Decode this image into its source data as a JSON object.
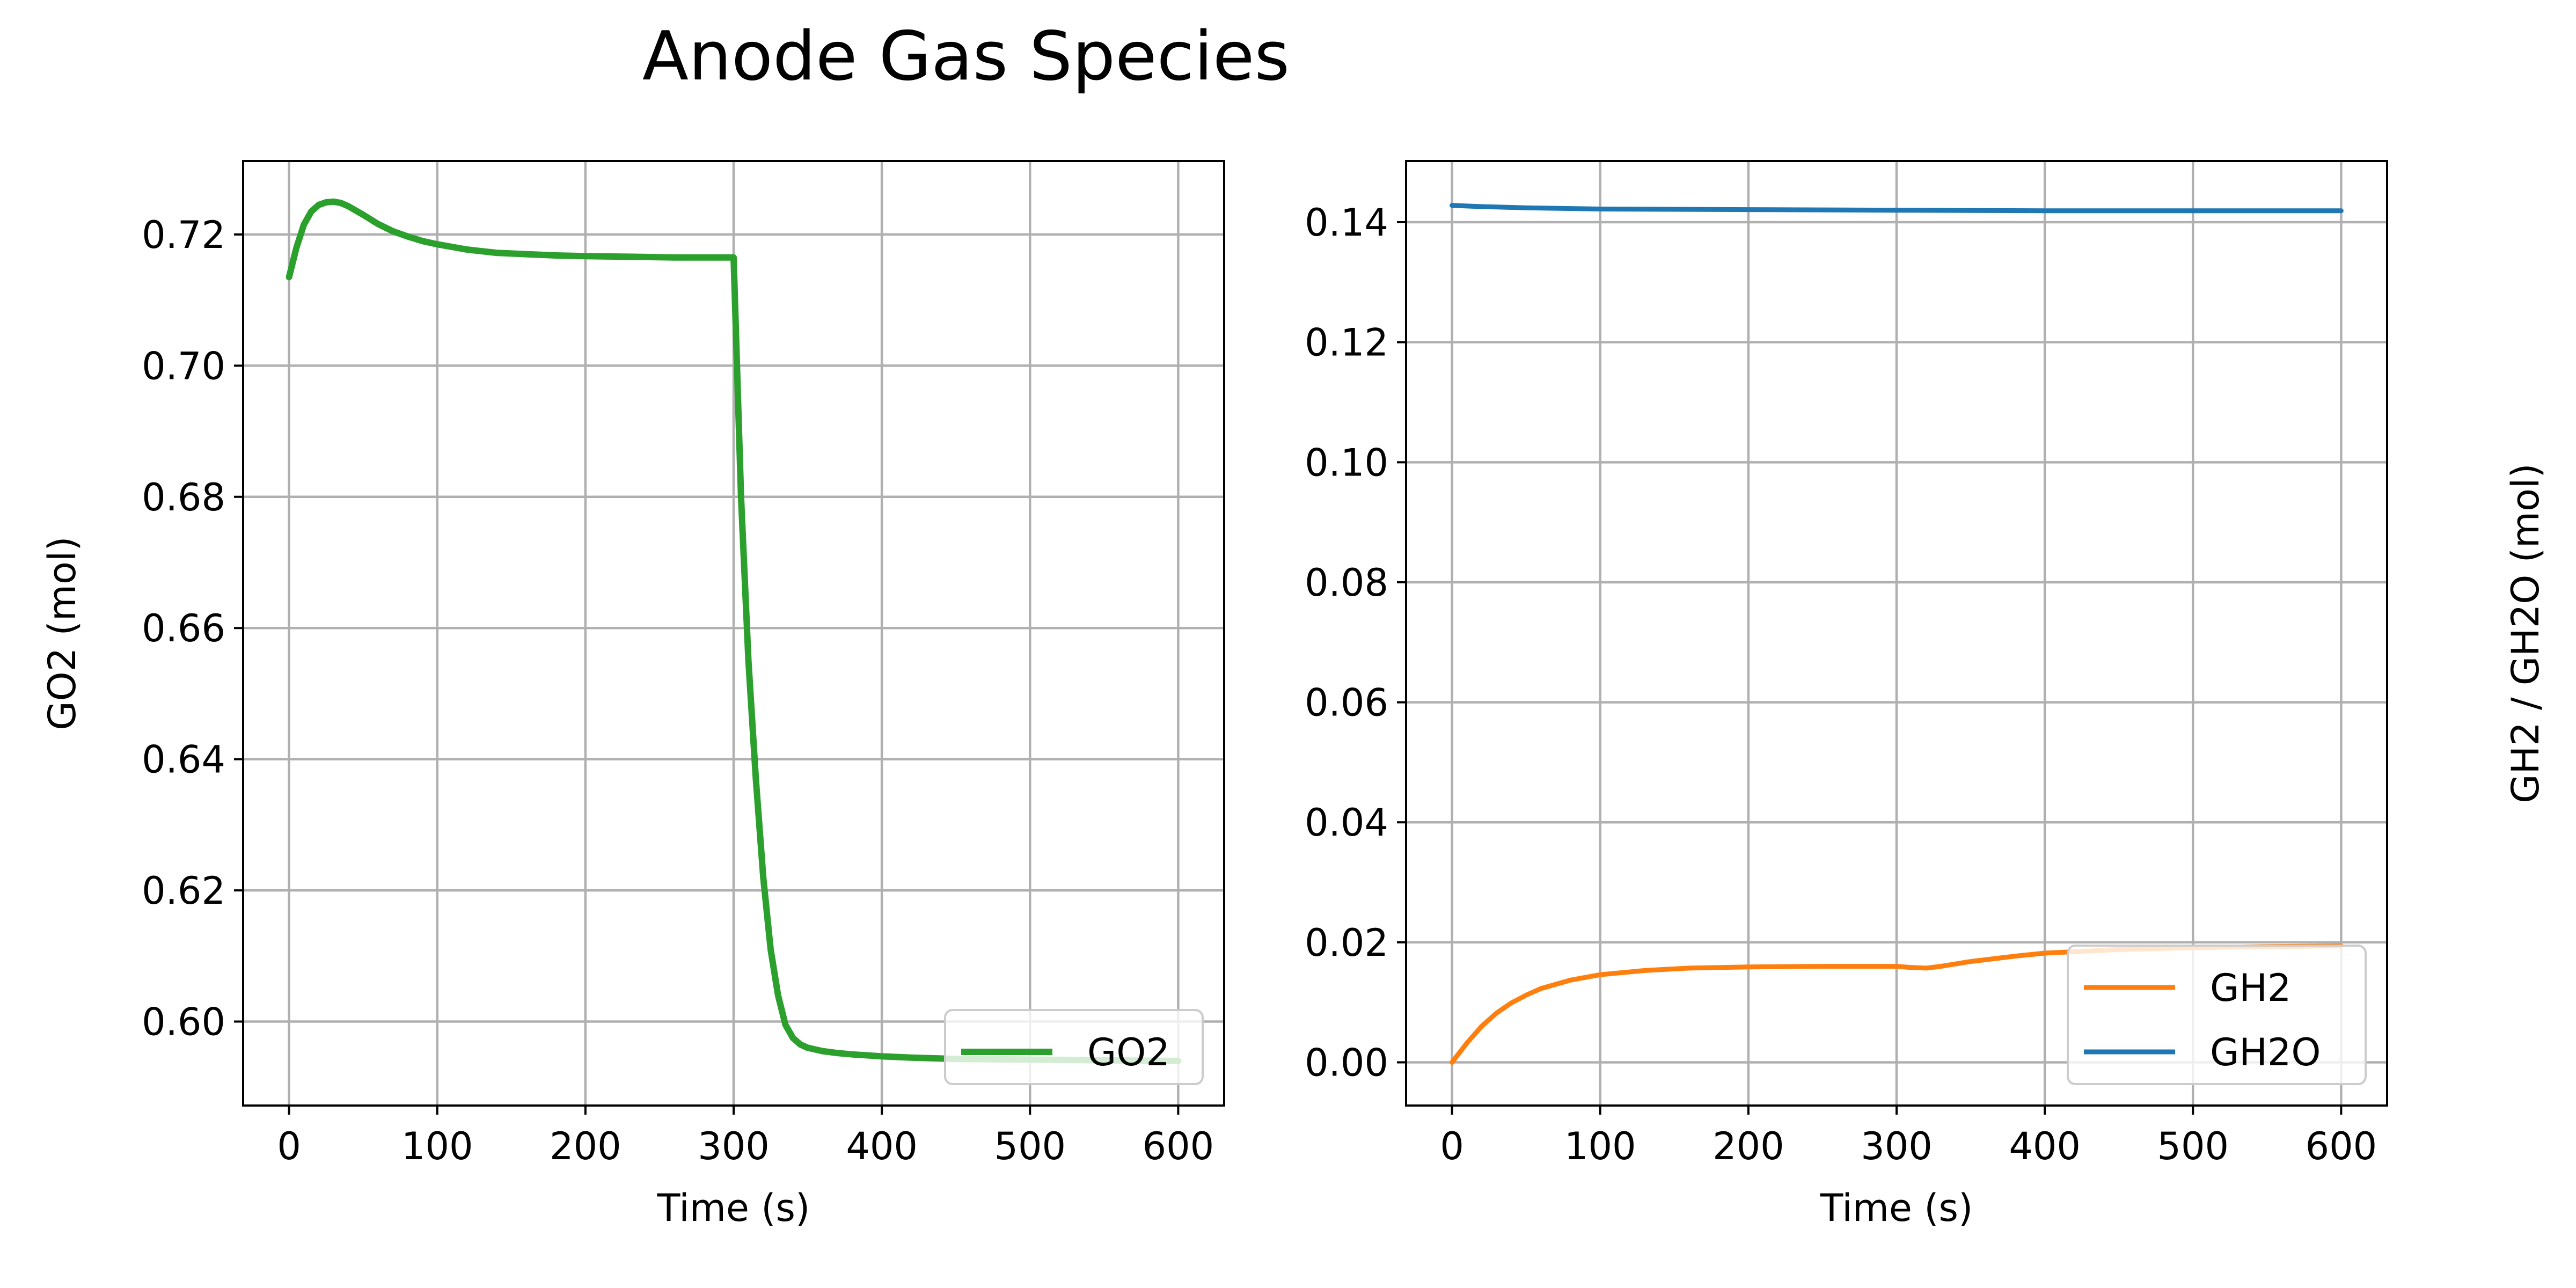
{
  "title": "Anode Gas Species",
  "chart_data": [
    {
      "type": "line",
      "xlabel": "Time (s)",
      "ylabel": "GO2 (mol)",
      "xlim": [
        -31,
        631
      ],
      "ylim": [
        0.5872,
        0.7312
      ],
      "xticks": [
        0,
        100,
        200,
        300,
        400,
        500,
        600
      ],
      "yticks": [
        0.6,
        0.62,
        0.64,
        0.66,
        0.68,
        0.7,
        0.72
      ],
      "ytick_decimals": 2,
      "grid": true,
      "legend_position": "lower-right",
      "series": [
        {
          "name": "GO2",
          "color": "#2ca02c",
          "x": [
            0,
            5,
            10,
            15,
            20,
            25,
            30,
            35,
            40,
            50,
            60,
            70,
            80,
            90,
            100,
            120,
            140,
            160,
            180,
            200,
            230,
            260,
            290,
            300,
            305,
            310,
            315,
            320,
            325,
            330,
            335,
            340,
            345,
            350,
            360,
            370,
            380,
            400,
            420,
            450,
            500,
            550,
            600
          ],
          "y": [
            0.7135,
            0.718,
            0.7215,
            0.7235,
            0.7245,
            0.7249,
            0.725,
            0.7248,
            0.7243,
            0.723,
            0.7216,
            0.7205,
            0.7197,
            0.719,
            0.7185,
            0.7177,
            0.7172,
            0.717,
            0.7168,
            0.7167,
            0.7166,
            0.7165,
            0.7165,
            0.7165,
            0.68,
            0.655,
            0.637,
            0.622,
            0.611,
            0.604,
            0.5995,
            0.5975,
            0.5965,
            0.596,
            0.5955,
            0.5952,
            0.595,
            0.5947,
            0.5945,
            0.5943,
            0.5942,
            0.5941,
            0.594
          ]
        }
      ]
    },
    {
      "type": "line",
      "xlabel": "Time (s)",
      "ylabel": "GH2 / GH2O (mol)",
      "xlim": [
        -31,
        631
      ],
      "ylim": [
        -0.0072,
        0.1502
      ],
      "xticks": [
        0,
        100,
        200,
        300,
        400,
        500,
        600
      ],
      "yticks": [
        0.0,
        0.02,
        0.04,
        0.06,
        0.08,
        0.1,
        0.12,
        0.14
      ],
      "ytick_decimals": 2,
      "grid": true,
      "legend_position": "lower-right",
      "series": [
        {
          "name": "GH2",
          "color": "#ff7f0e",
          "x": [
            0,
            10,
            20,
            30,
            40,
            50,
            60,
            80,
            100,
            130,
            160,
            200,
            250,
            300,
            310,
            320,
            330,
            350,
            380,
            400,
            450,
            500,
            550,
            600
          ],
          "y": [
            0.0,
            0.0032,
            0.006,
            0.0082,
            0.0099,
            0.0112,
            0.0123,
            0.0137,
            0.0146,
            0.0153,
            0.0157,
            0.0159,
            0.016,
            0.016,
            0.0158,
            0.0157,
            0.016,
            0.0168,
            0.0177,
            0.0182,
            0.0188,
            0.0191,
            0.0193,
            0.0194
          ]
        },
        {
          "name": "GH2O",
          "color": "#1f77b4",
          "x": [
            0,
            20,
            50,
            100,
            200,
            300,
            400,
            500,
            600
          ],
          "y": [
            0.1428,
            0.1426,
            0.1424,
            0.1422,
            0.1421,
            0.142,
            0.1419,
            0.1419,
            0.1419
          ]
        }
      ]
    }
  ]
}
